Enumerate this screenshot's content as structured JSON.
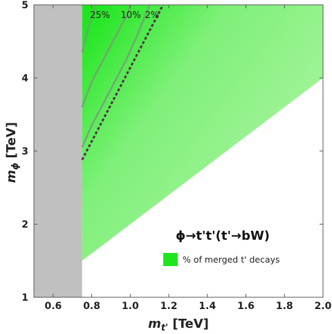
{
  "chart_data": {
    "type": "area",
    "title": "ϕ→t't'(t'→bW)",
    "xlabel": "m_t' [TeV]",
    "xlabel_parts": {
      "symbol": "m",
      "subscript": "t'",
      "unit": " [TeV]"
    },
    "ylabel": "m_ϕ [TeV]",
    "ylabel_parts": {
      "symbol": "m",
      "subscript": "ϕ",
      "unit": " [TeV]"
    },
    "xlim": [
      0.5,
      2.0
    ],
    "ylim": [
      1,
      5
    ],
    "x_ticks": [
      0.6,
      0.8,
      1.0,
      1.2,
      1.4,
      1.6,
      1.8,
      2.0
    ],
    "x_tick_labels": [
      "0.6",
      "0.8",
      "1.0",
      "1.2",
      "1.4",
      "1.6",
      "1.8",
      "2.0"
    ],
    "y_ticks": [
      1,
      2,
      3,
      4,
      5
    ],
    "y_tick_labels": [
      "1",
      "2",
      "3",
      "4",
      "5"
    ],
    "excluded_region": {
      "x_range": [
        0.5,
        0.75
      ],
      "color": "#c0c0c0"
    },
    "allowed_region": {
      "boundary": [
        [
          0.75,
          1.5
        ],
        [
          2.0,
          4.0
        ],
        [
          2.0,
          5.0
        ],
        [
          0.75,
          5.0
        ]
      ],
      "color_low": "#b3f5a8",
      "color_high": "#1ee61e"
    },
    "contours": [
      {
        "label": "25%",
        "points": [
          [
            0.75,
            4.35
          ],
          [
            0.77,
            4.55
          ],
          [
            0.79,
            4.75
          ],
          [
            0.81,
            4.9
          ],
          [
            0.82,
            5.0
          ]
        ]
      },
      {
        "label": "10%",
        "points": [
          [
            0.75,
            3.6
          ],
          [
            0.8,
            3.95
          ],
          [
            0.85,
            4.2
          ],
          [
            0.9,
            4.45
          ],
          [
            0.95,
            4.7
          ],
          [
            0.99,
            4.9
          ],
          [
            1.0,
            5.0
          ]
        ]
      },
      {
        "label": "2%",
        "points": [
          [
            0.75,
            3.05
          ],
          [
            0.8,
            3.35
          ],
          [
            0.86,
            3.65
          ],
          [
            0.92,
            3.95
          ],
          [
            0.98,
            4.25
          ],
          [
            1.03,
            4.55
          ],
          [
            1.07,
            4.8
          ],
          [
            1.1,
            5.0
          ]
        ]
      }
    ],
    "dashed_line": {
      "points": [
        [
          0.75,
          2.88
        ],
        [
          1.17,
          5.0
        ]
      ],
      "color": "#5a2a4a"
    },
    "legend": {
      "entries": [
        {
          "label": "% of merged t' decays",
          "color": "#1ee61e"
        }
      ]
    }
  }
}
